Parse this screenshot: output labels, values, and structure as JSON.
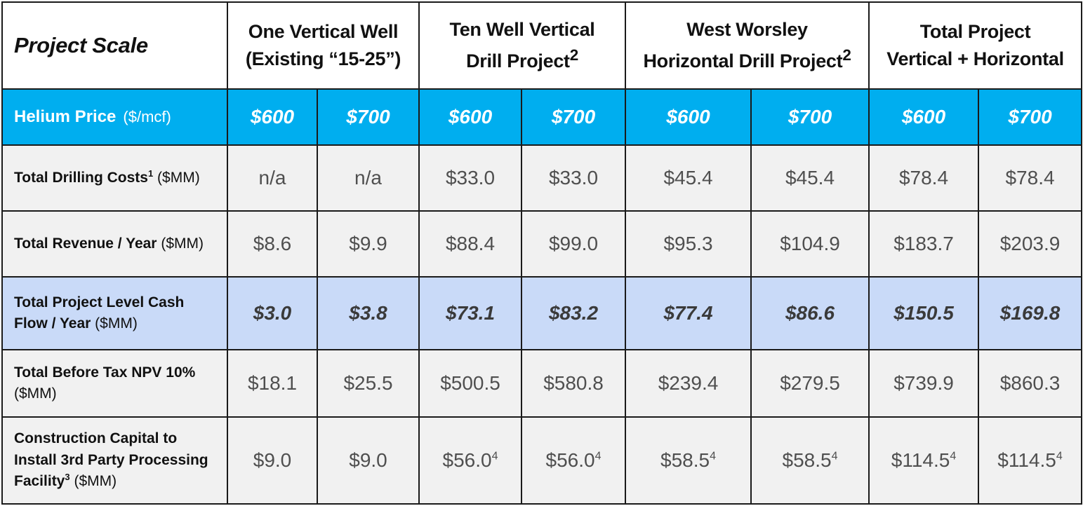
{
  "header": {
    "project_scale": "Project Scale",
    "groups": [
      {
        "line1": "One Vertical Well",
        "line2": "(Existing “15-25”)",
        "sup": ""
      },
      {
        "line1": "Ten Well Vertical",
        "line2": "Drill Project",
        "sup": "2"
      },
      {
        "line1": "West Worsley",
        "line2": "Horizontal Drill Project",
        "sup": "2"
      },
      {
        "line1": "Total Project",
        "line2": "Vertical + Horizontal",
        "sup": ""
      }
    ]
  },
  "price_row": {
    "label": "Helium Price",
    "unit": "($/mcf)",
    "values": [
      "$600",
      "$700",
      "$600",
      "$700",
      "$600",
      "$700",
      "$600",
      "$700"
    ]
  },
  "rows": {
    "drilling": {
      "label": "Total Drilling Costs",
      "sup": "1",
      "unit": "($MM)",
      "values": [
        "n/a",
        "n/a",
        "$33.0",
        "$33.0",
        "$45.4",
        "$45.4",
        "$78.4",
        "$78.4"
      ]
    },
    "revenue": {
      "label": "Total Revenue / Year",
      "unit": "($MM)",
      "values": [
        "$8.6",
        "$9.9",
        "$88.4",
        "$99.0",
        "$95.3",
        "$104.9",
        "$183.7",
        "$203.9"
      ]
    },
    "cashflow": {
      "line1": "Total Project Level Cash",
      "line2": "Flow / Year",
      "unit": "($MM)",
      "values": [
        "$3.0",
        "$3.8",
        "$73.1",
        "$83.2",
        "$77.4",
        "$86.6",
        "$150.5",
        "$169.8"
      ]
    },
    "npv": {
      "line1": "Total Before Tax NPV 10%",
      "unit": "($MM)",
      "values": [
        "$18.1",
        "$25.5",
        "$500.5",
        "$580.8",
        "$239.4",
        "$279.5",
        "$739.9",
        "$860.3"
      ]
    },
    "capital": {
      "line1": "Construction Capital to",
      "line2": "Install 3rd Party Processing",
      "line3": "Facility",
      "sup": "3",
      "unit": "($MM)",
      "values": [
        "$9.0",
        "$9.0",
        "$56.0",
        "$56.0",
        "$58.5",
        "$58.5",
        "$114.5",
        "$114.5"
      ],
      "value_sups": [
        "",
        "",
        "4",
        "4",
        "4",
        "4",
        "4",
        "4"
      ]
    }
  }
}
